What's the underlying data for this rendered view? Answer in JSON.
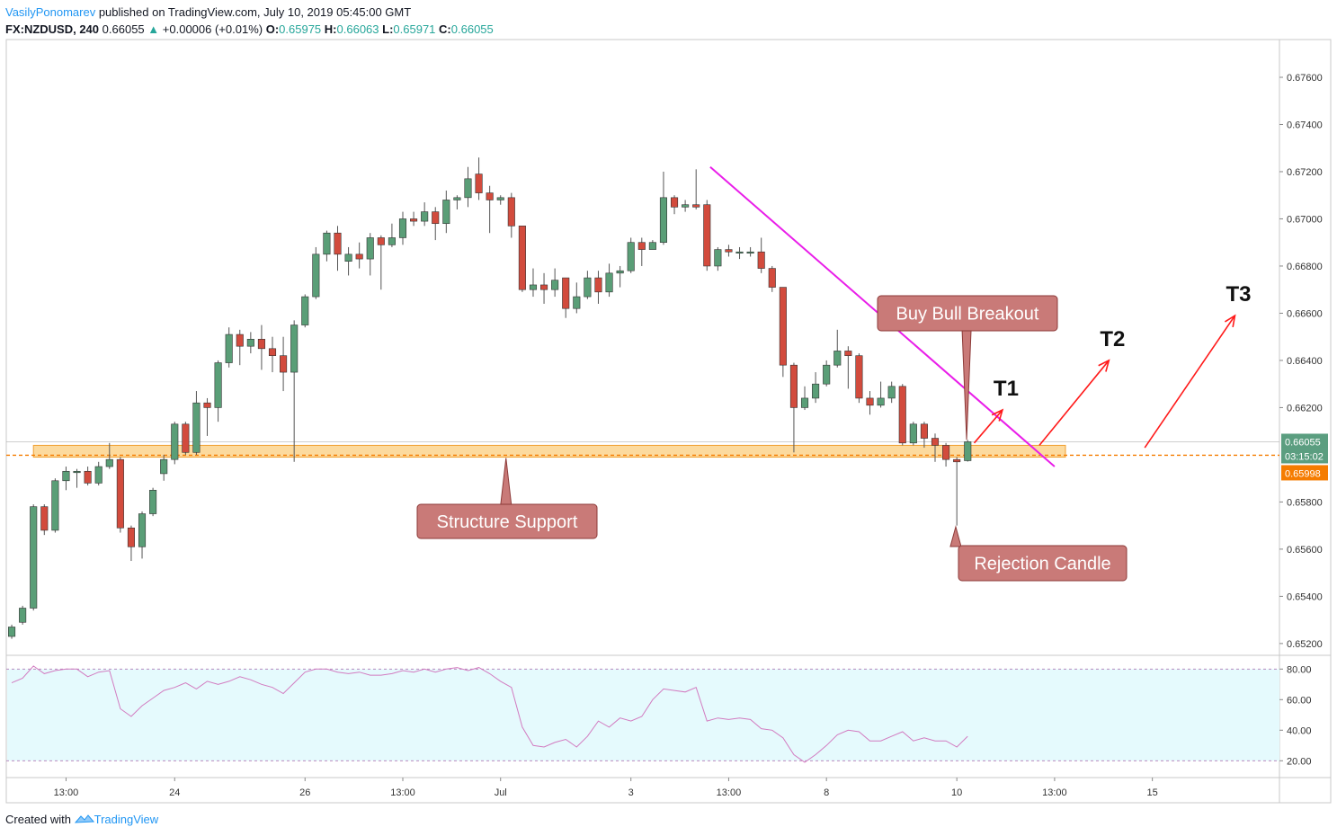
{
  "header": {
    "author": "VasilyPonomarev",
    "published": "published on TradingView.com, July 10, 2019 05:45:00 GMT",
    "symbol": "FX:NZDUSD, 240",
    "last": "0.66055",
    "change": "+0.00006 (+0.01%)",
    "o_label": "O:",
    "o": "0.65975",
    "h_label": "H:",
    "h": "0.66063",
    "l_label": "L:",
    "l": "0.65971",
    "c_label": "C:",
    "c": "0.66055"
  },
  "footer": {
    "created": "Created with",
    "brand": "TradingView"
  },
  "colors": {
    "bull": "#26a69a",
    "bull_fill": "#5a9e77",
    "bear": "#d24b3d",
    "trendline": "#e91ee9",
    "support_fill": "#fbd38d",
    "support_stroke": "#f0a030",
    "dotted": "#f57c00",
    "callout": "#c97a78",
    "rsi_line": "#d27bc0",
    "rsi_band": "#e5fafd",
    "arrow": "#ff1a1a"
  },
  "chart_data": {
    "type": "candlestick",
    "price_axis": {
      "range": [
        0.6515,
        0.6776
      ],
      "ticks": [
        "0.67600",
        "0.67400",
        "0.67200",
        "0.67000",
        "0.66800",
        "0.66600",
        "0.66400",
        "0.66200",
        "0.65800",
        "0.65600",
        "0.65400",
        "0.65200"
      ],
      "last_price_label": "0.66055",
      "countdown_label": "03:15:02",
      "support_price_label": "0.65998"
    },
    "time_axis": {
      "ticks": [
        {
          "i": 5,
          "label": "13:00"
        },
        {
          "i": 15,
          "label": "24"
        },
        {
          "i": 27,
          "label": "26"
        },
        {
          "i": 36,
          "label": "13:00"
        },
        {
          "i": 45,
          "label": "Jul"
        },
        {
          "i": 57,
          "label": "3"
        },
        {
          "i": 66,
          "label": "13:00"
        },
        {
          "i": 75,
          "label": "8"
        },
        {
          "i": 87,
          "label": "10"
        },
        {
          "i": 96,
          "label": "13:00"
        },
        {
          "i": 105,
          "label": "15"
        }
      ],
      "x_range": [
        -0.5,
        116.7
      ]
    },
    "candles": [
      [
        0.6523,
        0.6527,
        0.6522,
        0.6528
      ],
      [
        0.6529,
        0.6535,
        0.6528,
        0.6536
      ],
      [
        0.6535,
        0.6578,
        0.6534,
        0.6579
      ],
      [
        0.6578,
        0.6568,
        0.6566,
        0.6579
      ],
      [
        0.6568,
        0.6589,
        0.6567,
        0.659
      ],
      [
        0.6589,
        0.6593,
        0.6585,
        0.6595
      ],
      [
        0.6593,
        0.6593,
        0.6586,
        0.6594
      ],
      [
        0.6593,
        0.6588,
        0.6587,
        0.6595
      ],
      [
        0.6588,
        0.6595,
        0.6587,
        0.6597
      ],
      [
        0.6595,
        0.6598,
        0.6594,
        0.6605
      ],
      [
        0.6598,
        0.6569,
        0.6567,
        0.6599
      ],
      [
        0.6569,
        0.6561,
        0.6555,
        0.657
      ],
      [
        0.6561,
        0.6575,
        0.6556,
        0.6576
      ],
      [
        0.6575,
        0.6585,
        0.6574,
        0.6586
      ],
      [
        0.6592,
        0.6598,
        0.6589,
        0.66
      ],
      [
        0.6598,
        0.6613,
        0.6596,
        0.6614
      ],
      [
        0.6613,
        0.6601,
        0.66,
        0.6614
      ],
      [
        0.6601,
        0.6622,
        0.66,
        0.6627
      ],
      [
        0.6622,
        0.662,
        0.6608,
        0.6624
      ],
      [
        0.662,
        0.6639,
        0.6614,
        0.664
      ],
      [
        0.6639,
        0.6651,
        0.6637,
        0.6654
      ],
      [
        0.6651,
        0.6646,
        0.6638,
        0.6653
      ],
      [
        0.6646,
        0.6649,
        0.6643,
        0.6652
      ],
      [
        0.6649,
        0.6645,
        0.6636,
        0.6655
      ],
      [
        0.6645,
        0.6642,
        0.6635,
        0.665
      ],
      [
        0.6642,
        0.6635,
        0.6627,
        0.665
      ],
      [
        0.6635,
        0.6655,
        0.6597,
        0.6657
      ],
      [
        0.6655,
        0.6667,
        0.6654,
        0.6668
      ],
      [
        0.6667,
        0.6685,
        0.6666,
        0.6688
      ],
      [
        0.6685,
        0.6694,
        0.6682,
        0.6695
      ],
      [
        0.6694,
        0.6685,
        0.6678,
        0.6697
      ],
      [
        0.6682,
        0.6685,
        0.6676,
        0.6688
      ],
      [
        0.6685,
        0.6683,
        0.6679,
        0.669
      ],
      [
        0.6683,
        0.6692,
        0.6676,
        0.6694
      ],
      [
        0.6692,
        0.6689,
        0.667,
        0.6693
      ],
      [
        0.6689,
        0.6692,
        0.6688,
        0.6698
      ],
      [
        0.6692,
        0.67,
        0.6689,
        0.6703
      ],
      [
        0.67,
        0.6699,
        0.6697,
        0.6703
      ],
      [
        0.6699,
        0.6703,
        0.6697,
        0.6707
      ],
      [
        0.6703,
        0.6698,
        0.6691,
        0.6705
      ],
      [
        0.6698,
        0.6708,
        0.6694,
        0.6712
      ],
      [
        0.6708,
        0.6709,
        0.6704,
        0.671
      ],
      [
        0.6709,
        0.6717,
        0.6705,
        0.6722
      ],
      [
        0.6719,
        0.6711,
        0.6708,
        0.6726
      ],
      [
        0.6711,
        0.6708,
        0.6694,
        0.6714
      ],
      [
        0.6708,
        0.6709,
        0.6706,
        0.671
      ],
      [
        0.6709,
        0.6697,
        0.6692,
        0.6711
      ],
      [
        0.6697,
        0.667,
        0.6669,
        0.6697
      ],
      [
        0.667,
        0.6672,
        0.6667,
        0.6679
      ],
      [
        0.6672,
        0.667,
        0.6664,
        0.6677
      ],
      [
        0.667,
        0.6674,
        0.6667,
        0.6679
      ],
      [
        0.6675,
        0.6662,
        0.6658,
        0.6675
      ],
      [
        0.6662,
        0.6667,
        0.666,
        0.6673
      ],
      [
        0.6667,
        0.6675,
        0.6666,
        0.6678
      ],
      [
        0.6675,
        0.6669,
        0.6664,
        0.6678
      ],
      [
        0.6669,
        0.6677,
        0.6667,
        0.6681
      ],
      [
        0.6677,
        0.6678,
        0.6671,
        0.668
      ],
      [
        0.6678,
        0.669,
        0.6677,
        0.6692
      ],
      [
        0.669,
        0.6687,
        0.668,
        0.6692
      ],
      [
        0.6687,
        0.669,
        0.6688,
        0.6691
      ],
      [
        0.669,
        0.6709,
        0.6689,
        0.672
      ],
      [
        0.6709,
        0.6705,
        0.6702,
        0.671
      ],
      [
        0.6705,
        0.6706,
        0.6703,
        0.6708
      ],
      [
        0.6706,
        0.6705,
        0.6704,
        0.6721
      ],
      [
        0.6706,
        0.668,
        0.6678,
        0.6708
      ],
      [
        0.668,
        0.6687,
        0.6678,
        0.6688
      ],
      [
        0.6687,
        0.6686,
        0.6684,
        0.6689
      ],
      [
        0.6686,
        0.6686,
        0.6683,
        0.6688
      ],
      [
        0.6686,
        0.6686,
        0.6684,
        0.6688
      ],
      [
        0.6686,
        0.6679,
        0.6677,
        0.6692
      ],
      [
        0.6679,
        0.6671,
        0.6669,
        0.668
      ],
      [
        0.6671,
        0.6638,
        0.6633,
        0.6671
      ],
      [
        0.6638,
        0.662,
        0.6601,
        0.6639
      ],
      [
        0.662,
        0.6624,
        0.6619,
        0.6629
      ],
      [
        0.6624,
        0.663,
        0.6622,
        0.6635
      ],
      [
        0.663,
        0.6638,
        0.6629,
        0.664
      ],
      [
        0.6638,
        0.6644,
        0.6637,
        0.6653
      ],
      [
        0.6644,
        0.6642,
        0.6628,
        0.6646
      ],
      [
        0.6642,
        0.6624,
        0.6622,
        0.6643
      ],
      [
        0.6624,
        0.6621,
        0.6617,
        0.6627
      ],
      [
        0.6621,
        0.6624,
        0.662,
        0.6631
      ],
      [
        0.6624,
        0.6629,
        0.6622,
        0.6631
      ],
      [
        0.6629,
        0.6605,
        0.6604,
        0.663
      ],
      [
        0.6605,
        0.6613,
        0.6604,
        0.6614
      ],
      [
        0.6613,
        0.6607,
        0.6603,
        0.6614
      ],
      [
        0.6607,
        0.6604,
        0.6597,
        0.6609
      ],
      [
        0.6604,
        0.6598,
        0.6595,
        0.6605
      ],
      [
        0.6598,
        0.6597,
        0.657,
        0.6599
      ],
      [
        0.65975,
        0.66055,
        0.65971,
        0.66063
      ]
    ],
    "levels": {
      "support_zone": [
        0.6599,
        0.6604
      ],
      "support_x": [
        2.0,
        97.0
      ],
      "dotted_price": 0.65998,
      "trendline": [
        [
          64.3,
          0.6722
        ],
        [
          96.0,
          0.6595
        ]
      ]
    },
    "annotations": [
      {
        "name": "structure-support",
        "text": "Structure Support"
      },
      {
        "name": "rejection-candle",
        "text": "Rejection Candle"
      },
      {
        "name": "buy-bull-breakout",
        "text": "Buy Bull Breakout"
      }
    ],
    "targets": [
      {
        "label": "T1",
        "from": [
          88.6,
          0.6605
        ],
        "to": [
          91.2,
          0.6619
        ]
      },
      {
        "label": "T2",
        "from": [
          94.6,
          0.6604
        ],
        "to": [
          101.0,
          0.664
        ]
      },
      {
        "label": "T3",
        "from": [
          104.3,
          0.6603
        ],
        "to": [
          112.6,
          0.6659
        ]
      }
    ],
    "rsi": {
      "range": [
        9,
        89
      ],
      "ticks": [
        "80.00",
        "60.00",
        "40.00",
        "20.00"
      ],
      "band": [
        20,
        80
      ],
      "values": [
        71,
        74,
        82,
        77,
        79,
        80,
        80,
        75,
        78,
        79,
        54,
        49,
        56,
        61,
        66,
        68,
        71,
        67,
        72,
        70,
        72,
        75,
        73,
        70,
        68,
        64,
        71,
        78,
        80,
        80,
        78,
        77,
        78,
        76,
        76,
        77,
        79,
        78,
        80,
        78,
        80,
        81,
        79,
        81,
        77,
        72,
        68,
        42,
        30,
        29,
        32,
        34,
        29,
        36,
        46,
        42,
        48,
        46,
        49,
        60,
        67,
        66,
        65,
        68,
        46,
        48,
        47,
        48,
        47,
        41,
        40,
        35,
        24,
        19,
        24,
        30,
        37,
        40,
        39,
        33,
        33,
        36,
        39,
        33,
        35,
        33,
        33,
        29,
        36
      ]
    }
  }
}
